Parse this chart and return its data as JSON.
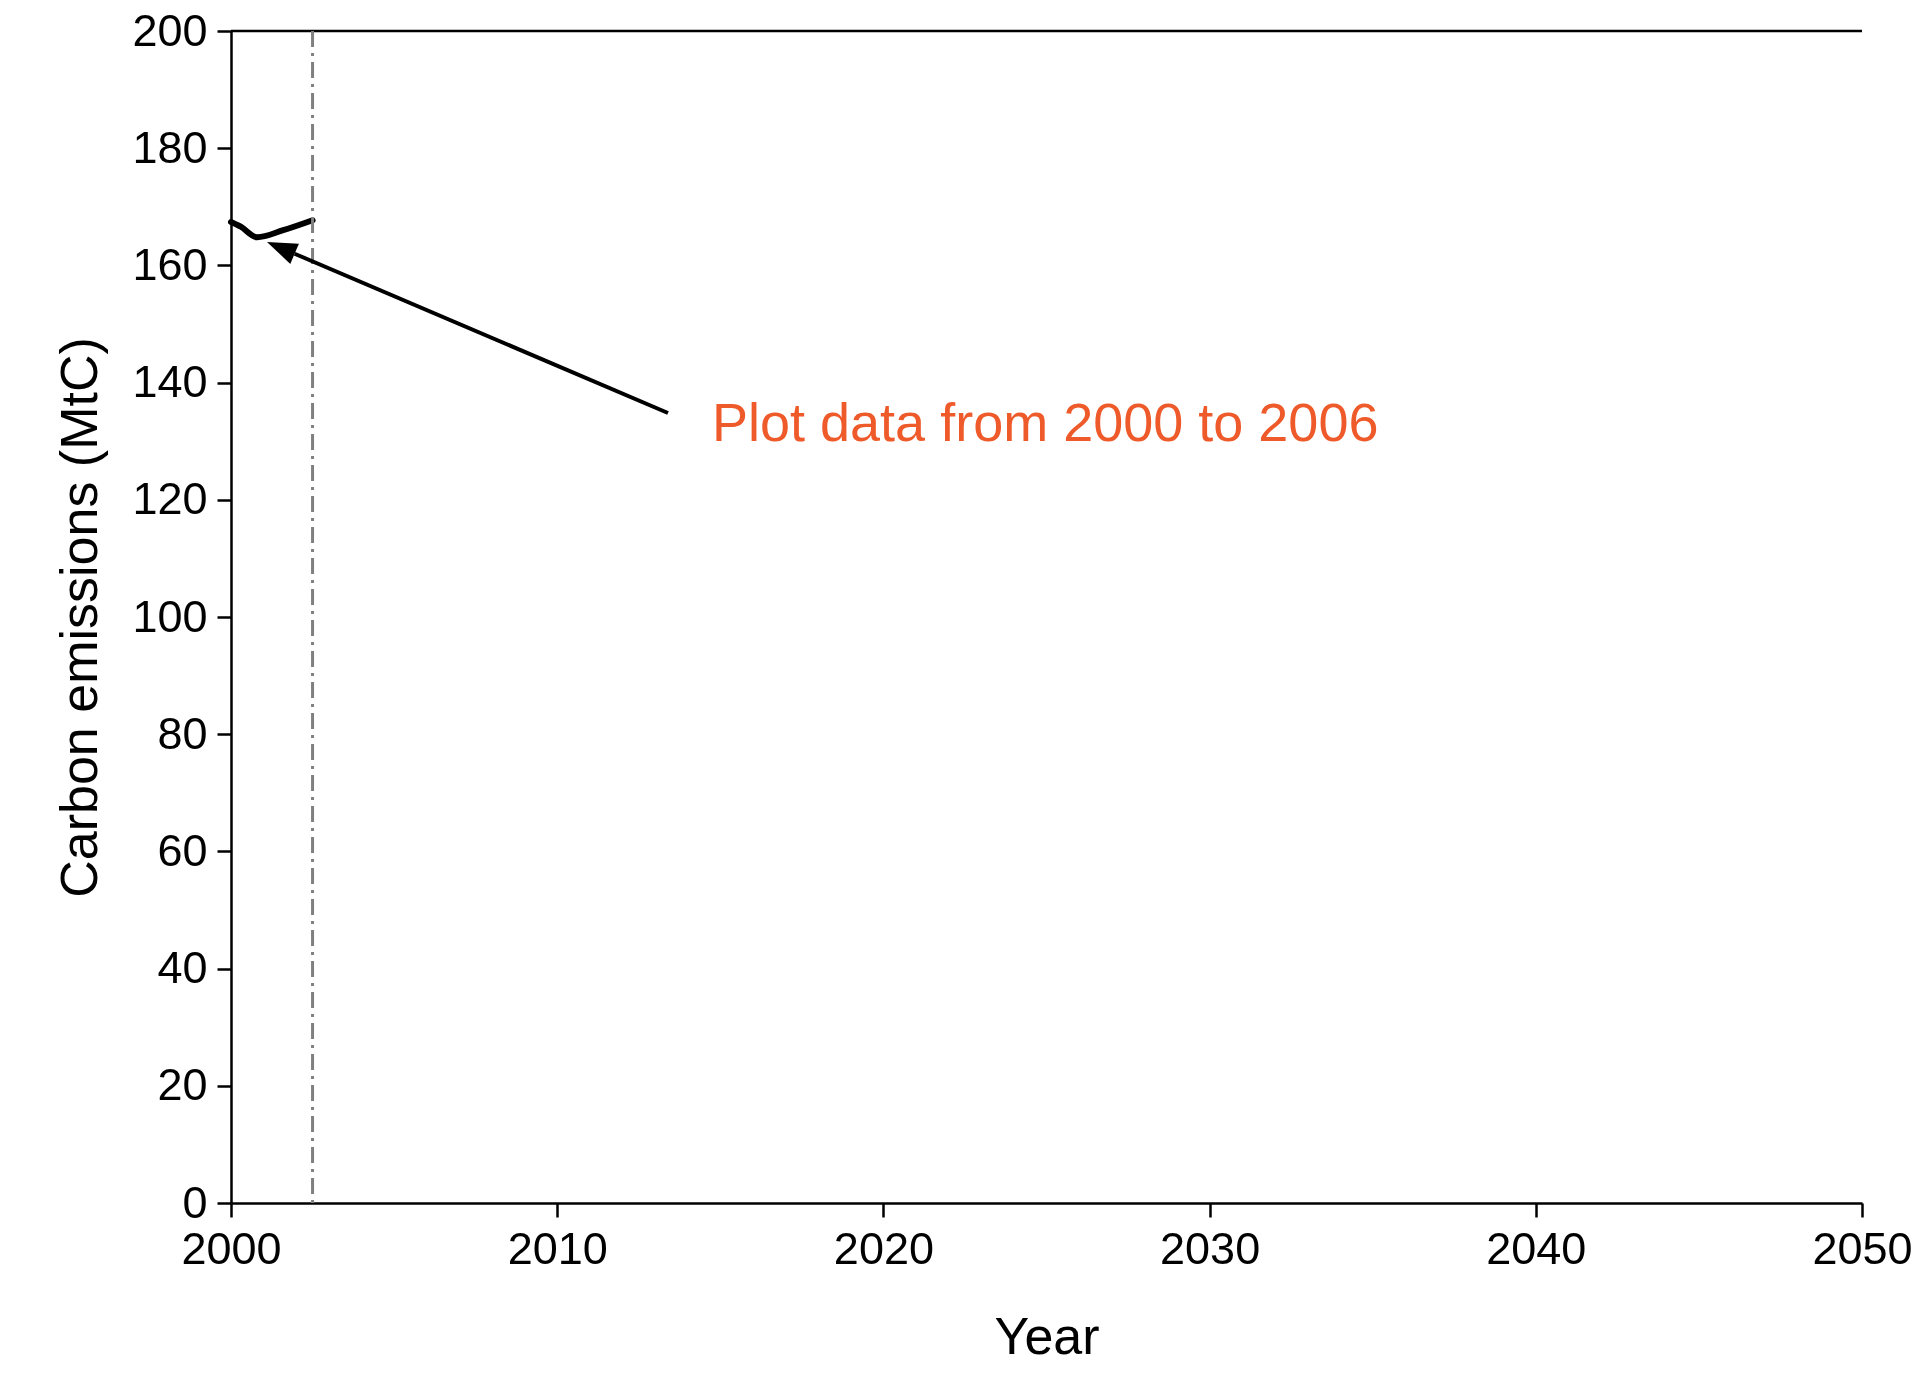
{
  "chart_data": {
    "type": "line",
    "xlabel": "Year",
    "ylabel": "Carbon emissions (MtC)",
    "xlim": [
      2000,
      2050
    ],
    "xticks": [
      2000,
      2010,
      2020,
      2030,
      2040,
      2050
    ],
    "ylim": [
      0,
      200
    ],
    "yticks": [
      0,
      20,
      40,
      60,
      80,
      100,
      120,
      140,
      160,
      180,
      200
    ],
    "series": [
      {
        "color": "#000000",
        "x": [
          2000.0,
          2000.3,
          2000.8,
          2001.6,
          2002.5
        ],
        "values": [
          167.4,
          166.6,
          164.8,
          166.0,
          167.7
        ]
      }
    ],
    "ref_lines": [
      {
        "axis": "x",
        "value": 2002.5,
        "color": "#808080",
        "line_style": "dashed"
      }
    ],
    "annotations": [
      "Plot data from 2000 to 2006"
    ],
    "grid": false,
    "marker": "none",
    "line_style": "solid"
  }
}
